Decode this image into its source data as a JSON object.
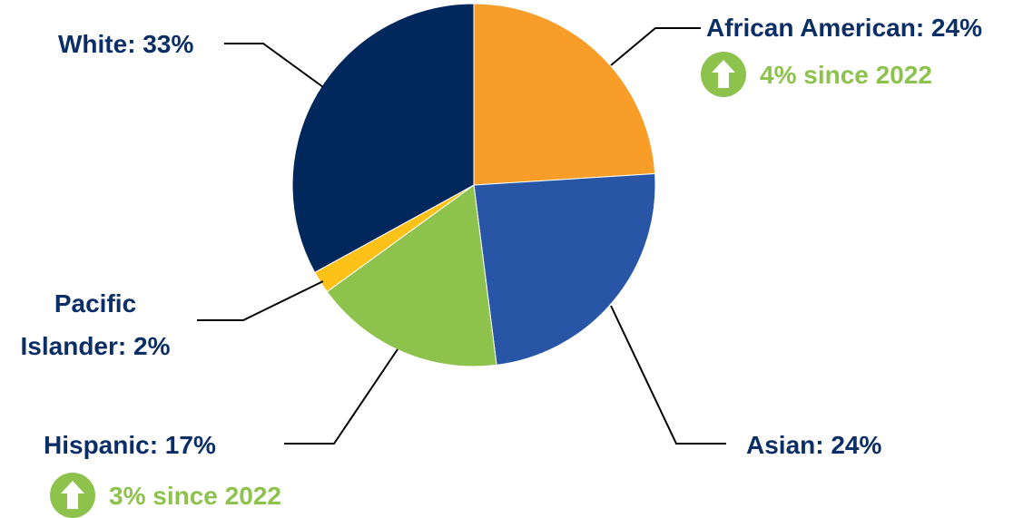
{
  "chart_data": {
    "type": "pie",
    "title": "",
    "start_angle_deg": 0,
    "direction": "clockwise",
    "slices": [
      {
        "name": "African American",
        "value": 24,
        "label": "African American: 24%",
        "color": "#f89d28",
        "change": {
          "text": "4% since 2022",
          "direction": "up",
          "icon": "up-arrow-circle-icon",
          "color": "#8dc24c"
        }
      },
      {
        "name": "Asian",
        "value": 24,
        "label": "Asian: 24%",
        "color": "#2855a6"
      },
      {
        "name": "Hispanic",
        "value": 17,
        "label": "Hispanic: 17%",
        "color": "#8dc24c",
        "change": {
          "text": "3% since 2022",
          "direction": "up",
          "icon": "up-arrow-circle-icon",
          "color": "#8dc24c"
        }
      },
      {
        "name": "Pacific Islander",
        "value": 2,
        "label_lines": [
          "Pacific",
          "Islander: 2%"
        ],
        "color": "#fdc219"
      },
      {
        "name": "White",
        "value": 33,
        "label": "White: 33%",
        "color": "#00285c"
      }
    ],
    "label_color": "#0b2e66",
    "leader_line_color": "#000000"
  }
}
